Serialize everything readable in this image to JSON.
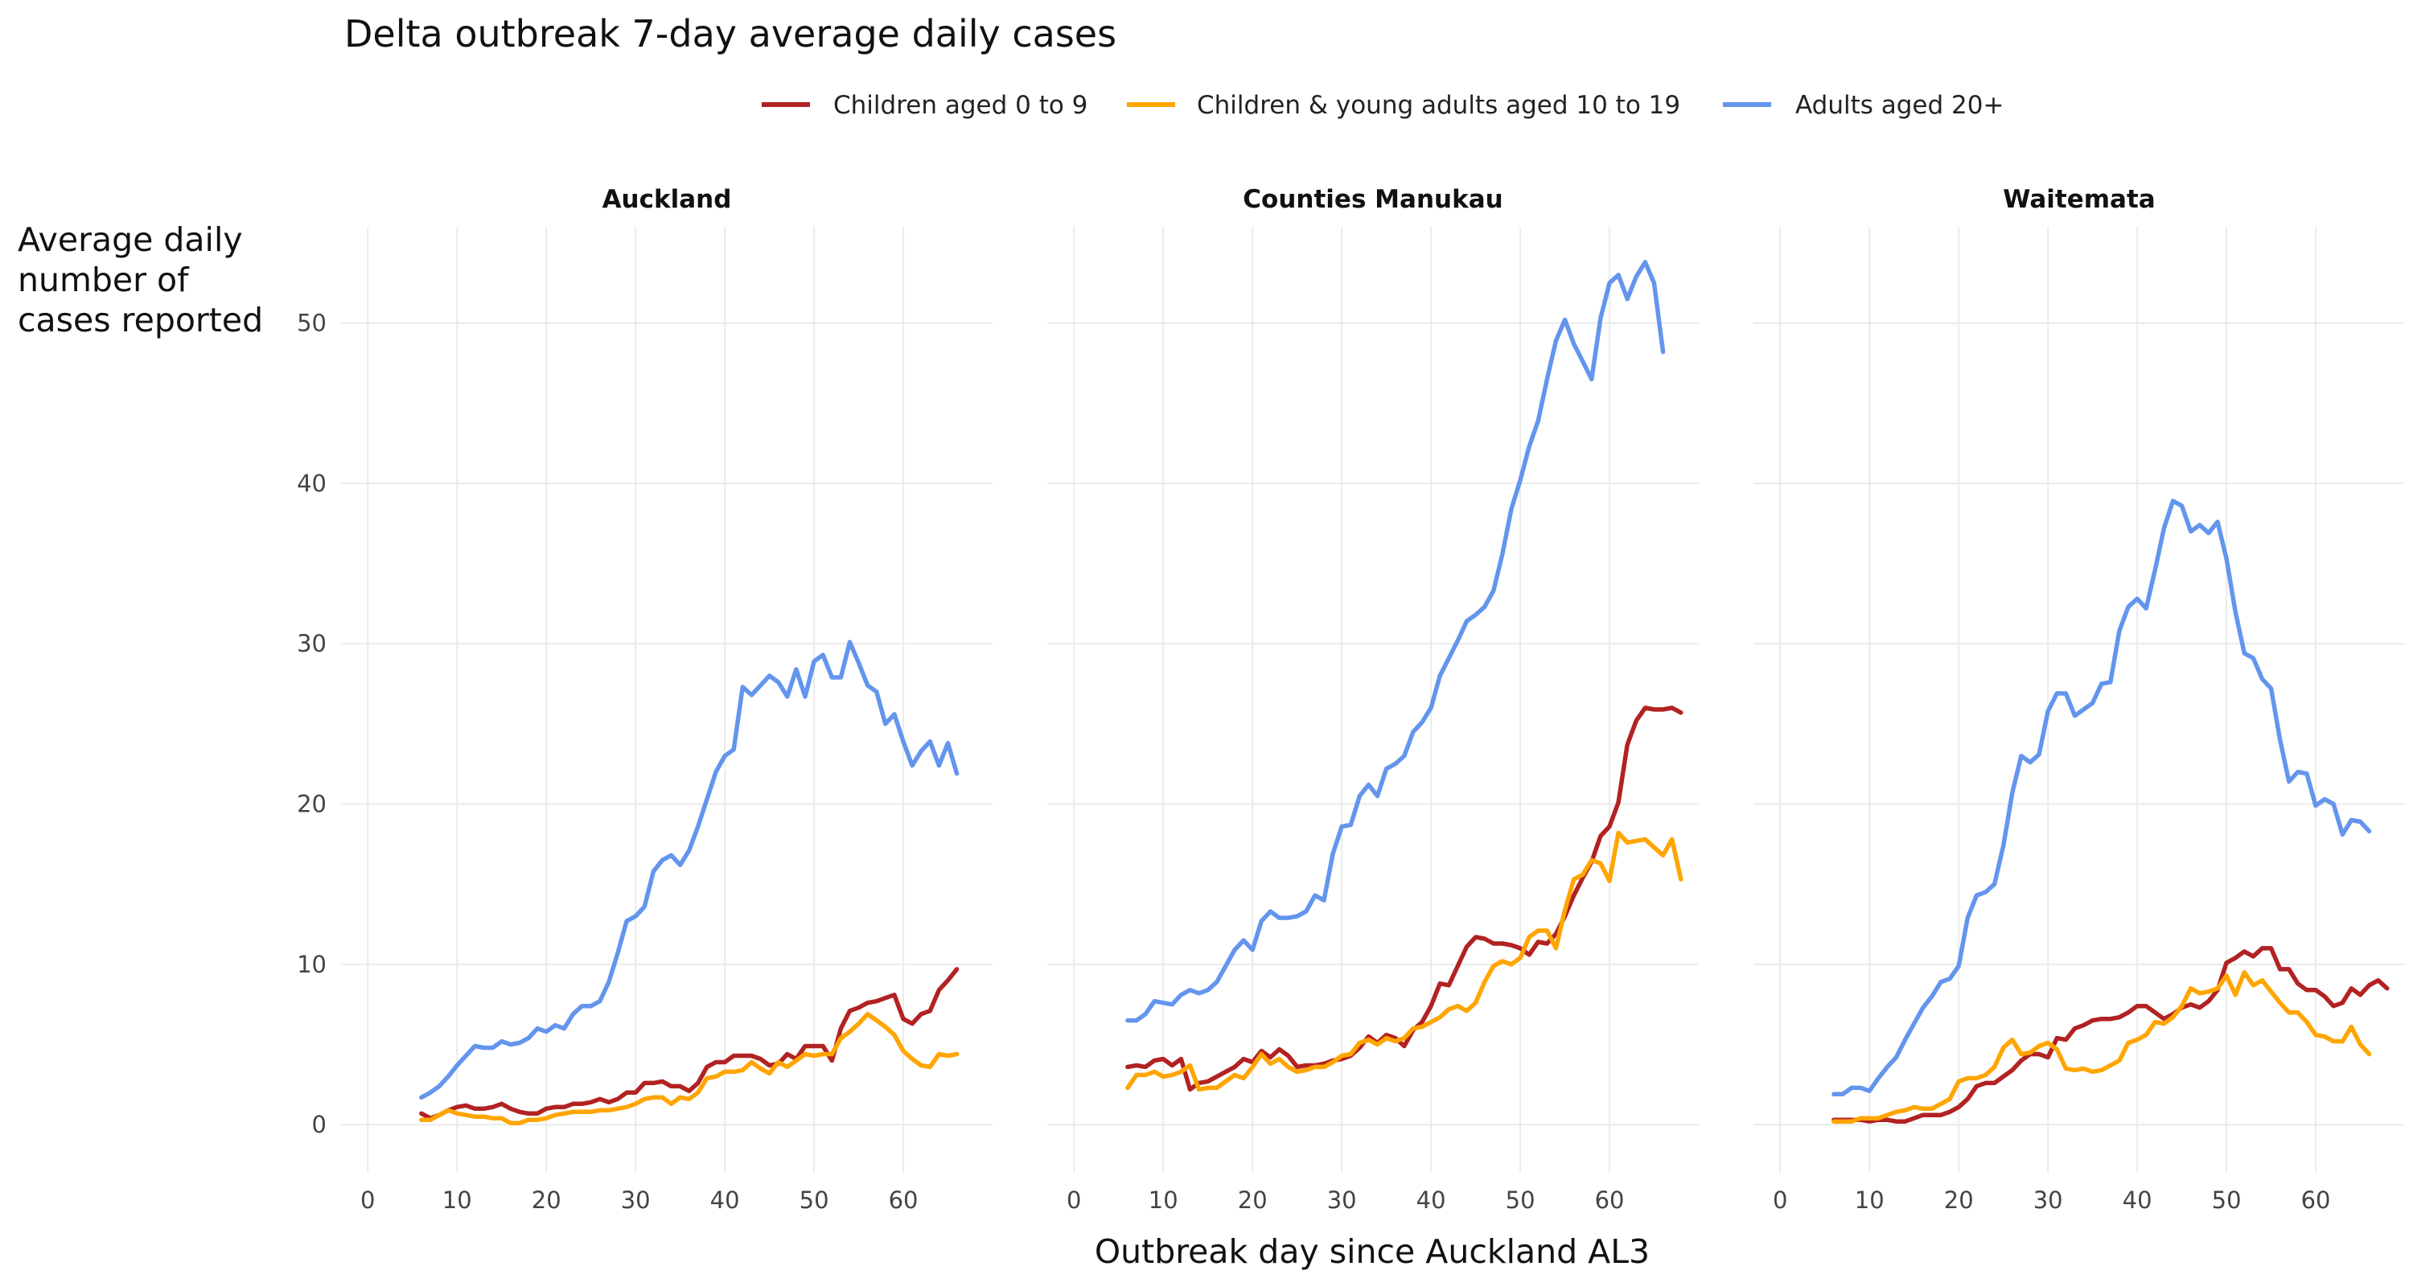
{
  "chart_data": {
    "type": "line",
    "title": "Delta outbreak 7-day average daily cases",
    "xlabel": "Outbreak day since Auckland AL3",
    "ylabel_lines": [
      "Average daily",
      "number of",
      "cases reported"
    ],
    "xlim": [
      -3,
      70
    ],
    "ylim": [
      -3,
      56
    ],
    "x_ticks": [
      0,
      10,
      20,
      30,
      40,
      50,
      60
    ],
    "y_ticks": [
      0,
      10,
      20,
      30,
      40,
      50
    ],
    "grid": true,
    "legend_position": "top",
    "legend": [
      {
        "name": "Children aged 0 to 9",
        "color": "#B22222"
      },
      {
        "name": "Children & young adults aged 10 to 19",
        "color": "#FFA500"
      },
      {
        "name": "Adults aged 20+",
        "color": "#6495ED"
      }
    ],
    "x_start": 6,
    "panels": [
      {
        "name": "Auckland",
        "series": [
          {
            "name": "Children aged 0 to 9",
            "values": [
              0.7,
              0.4,
              0.6,
              0.9,
              1.1,
              1.2,
              1.0,
              1.0,
              1.1,
              1.3,
              1.0,
              0.8,
              0.7,
              0.7,
              1.0,
              1.1,
              1.1,
              1.3,
              1.3,
              1.4,
              1.6,
              1.4,
              1.6,
              2.0,
              2.0,
              2.6,
              2.6,
              2.7,
              2.4,
              2.4,
              2.1,
              2.6,
              3.6,
              3.9,
              3.9,
              4.3,
              4.3,
              4.3,
              4.1,
              3.7,
              3.8,
              4.4,
              4.1,
              4.9,
              4.9,
              4.9,
              4.0,
              6.0,
              7.1,
              7.3,
              7.6,
              7.7,
              7.9,
              8.1,
              6.6,
              6.3,
              6.9,
              7.1,
              8.4,
              9.0,
              9.7
            ]
          },
          {
            "name": "Children & young adults aged 10 to 19",
            "values": [
              0.3,
              0.3,
              0.6,
              0.9,
              0.7,
              0.6,
              0.5,
              0.5,
              0.4,
              0.4,
              0.1,
              0.1,
              0.3,
              0.3,
              0.4,
              0.6,
              0.7,
              0.8,
              0.8,
              0.8,
              0.9,
              0.9,
              1.0,
              1.1,
              1.3,
              1.6,
              1.7,
              1.7,
              1.3,
              1.7,
              1.6,
              2.0,
              2.9,
              3.0,
              3.3,
              3.3,
              3.4,
              3.9,
              3.5,
              3.2,
              3.9,
              3.6,
              4.0,
              4.4,
              4.3,
              4.4,
              4.4,
              5.4,
              5.8,
              6.3,
              6.9,
              6.5,
              6.1,
              5.6,
              4.6,
              4.1,
              3.7,
              3.6,
              4.4,
              4.3,
              4.4
            ]
          },
          {
            "name": "Adults aged 20+",
            "values": [
              1.7,
              2.0,
              2.4,
              3.0,
              3.7,
              4.3,
              4.9,
              4.8,
              4.8,
              5.2,
              5.0,
              5.1,
              5.4,
              6.0,
              5.8,
              6.2,
              6.0,
              6.9,
              7.4,
              7.4,
              7.7,
              8.9,
              10.7,
              12.7,
              13.0,
              13.6,
              15.8,
              16.5,
              16.8,
              16.2,
              17.1,
              18.6,
              20.3,
              22.0,
              23.0,
              23.4,
              27.3,
              26.8,
              27.4,
              28.0,
              27.6,
              26.7,
              28.4,
              26.7,
              28.9,
              29.3,
              27.9,
              27.9,
              30.1,
              28.8,
              27.4,
              27.0,
              25.0,
              25.6,
              23.9,
              22.4,
              23.3,
              23.9,
              22.4,
              23.8,
              21.9
            ]
          }
        ]
      },
      {
        "name": "Counties Manukau",
        "series": [
          {
            "name": "Children aged 0 to 9",
            "values": [
              3.6,
              3.7,
              3.6,
              4.0,
              4.1,
              3.7,
              4.1,
              2.2,
              2.6,
              2.7,
              3.0,
              3.3,
              3.6,
              4.1,
              3.9,
              4.6,
              4.2,
              4.7,
              4.3,
              3.6,
              3.7,
              3.7,
              3.8,
              4.0,
              4.1,
              4.3,
              4.8,
              5.5,
              5.1,
              5.6,
              5.4,
              4.9,
              5.9,
              6.4,
              7.4,
              8.8,
              8.7,
              9.9,
              11.1,
              11.7,
              11.6,
              11.3,
              11.3,
              11.2,
              11.0,
              10.6,
              11.4,
              11.3,
              11.9,
              13.0,
              14.3,
              15.4,
              16.4,
              18.0,
              18.6,
              20.1,
              23.7,
              25.2,
              26.0,
              25.9,
              25.9,
              26.0,
              25.7
            ]
          },
          {
            "name": "Children & young adults aged 10 to 19",
            "values": [
              2.3,
              3.1,
              3.1,
              3.3,
              3.0,
              3.1,
              3.3,
              3.7,
              2.2,
              2.3,
              2.3,
              2.7,
              3.1,
              2.9,
              3.6,
              4.4,
              3.8,
              4.1,
              3.6,
              3.3,
              3.4,
              3.6,
              3.6,
              3.9,
              4.3,
              4.4,
              5.1,
              5.3,
              5.0,
              5.4,
              5.2,
              5.4,
              6.0,
              6.1,
              6.4,
              6.7,
              7.2,
              7.4,
              7.1,
              7.6,
              8.9,
              9.9,
              10.2,
              10.0,
              10.4,
              11.7,
              12.1,
              12.1,
              11.0,
              13.4,
              15.3,
              15.6,
              16.5,
              16.3,
              15.2,
              18.2,
              17.6,
              17.7,
              17.8,
              17.3,
              16.8,
              17.8,
              15.3
            ]
          },
          {
            "name": "Adults aged 20+",
            "values": [
              6.5,
              6.5,
              6.9,
              7.7,
              7.6,
              7.5,
              8.1,
              8.4,
              8.2,
              8.4,
              8.9,
              9.9,
              10.9,
              11.5,
              10.9,
              12.7,
              13.3,
              12.9,
              12.9,
              13.0,
              13.3,
              14.3,
              14.0,
              16.9,
              18.6,
              18.7,
              20.5,
              21.2,
              20.5,
              22.2,
              22.5,
              23.0,
              24.5,
              25.1,
              26.0,
              28.0,
              29.1,
              30.2,
              31.4,
              31.8,
              32.3,
              33.3,
              35.6,
              38.4,
              40.2,
              42.3,
              43.9,
              46.5,
              48.9,
              50.2,
              48.7,
              47.6,
              46.5,
              50.3,
              52.5,
              53.0,
              51.5,
              52.9,
              53.8,
              52.5,
              48.2
            ]
          }
        ]
      },
      {
        "name": "Waitemata",
        "series": [
          {
            "name": "Children aged 0 to 9",
            "values": [
              0.3,
              0.3,
              0.3,
              0.3,
              0.2,
              0.3,
              0.3,
              0.2,
              0.2,
              0.4,
              0.6,
              0.6,
              0.6,
              0.8,
              1.1,
              1.6,
              2.4,
              2.6,
              2.6,
              3.0,
              3.4,
              4.0,
              4.4,
              4.4,
              4.2,
              5.4,
              5.3,
              6.0,
              6.2,
              6.5,
              6.6,
              6.6,
              6.7,
              7.0,
              7.4,
              7.4,
              7.0,
              6.6,
              6.9,
              7.3,
              7.5,
              7.3,
              7.7,
              8.4,
              10.1,
              10.4,
              10.8,
              10.5,
              11.0,
              11.0,
              9.7,
              9.7,
              8.8,
              8.4,
              8.4,
              8.0,
              7.4,
              7.6,
              8.5,
              8.1,
              8.7,
              9.0,
              8.5
            ]
          },
          {
            "name": "Children & young adults aged 10 to 19",
            "values": [
              0.2,
              0.2,
              0.2,
              0.4,
              0.4,
              0.4,
              0.6,
              0.8,
              0.9,
              1.1,
              1.0,
              1.0,
              1.3,
              1.6,
              2.7,
              2.9,
              2.9,
              3.1,
              3.6,
              4.8,
              5.3,
              4.4,
              4.5,
              4.9,
              5.1,
              4.7,
              3.5,
              3.4,
              3.5,
              3.3,
              3.4,
              3.7,
              4.0,
              5.1,
              5.3,
              5.6,
              6.4,
              6.3,
              6.7,
              7.4,
              8.5,
              8.2,
              8.3,
              8.5,
              9.3,
              8.1,
              9.5,
              8.7,
              9.0,
              8.3,
              7.6,
              7.0,
              7.0,
              6.4,
              5.6,
              5.5,
              5.2,
              5.2,
              6.1,
              5.0,
              4.4
            ]
          },
          {
            "name": "Adults aged 20+",
            "values": [
              1.9,
              1.9,
              2.3,
              2.3,
              2.1,
              2.9,
              3.6,
              4.2,
              5.3,
              6.3,
              7.3,
              8.0,
              8.9,
              9.1,
              9.9,
              12.9,
              14.3,
              14.5,
              15.0,
              17.4,
              20.7,
              23.0,
              22.6,
              23.1,
              25.8,
              26.9,
              26.9,
              25.5,
              25.9,
              26.3,
              27.5,
              27.6,
              30.8,
              32.3,
              32.8,
              32.2,
              34.6,
              37.2,
              38.9,
              38.6,
              37.0,
              37.4,
              36.9,
              37.6,
              35.3,
              32.0,
              29.4,
              29.1,
              27.8,
              27.2,
              24.0,
              21.4,
              22.0,
              21.9,
              19.9,
              20.3,
              20.0,
              18.1,
              19.0,
              18.9,
              18.3
            ]
          }
        ]
      }
    ]
  }
}
